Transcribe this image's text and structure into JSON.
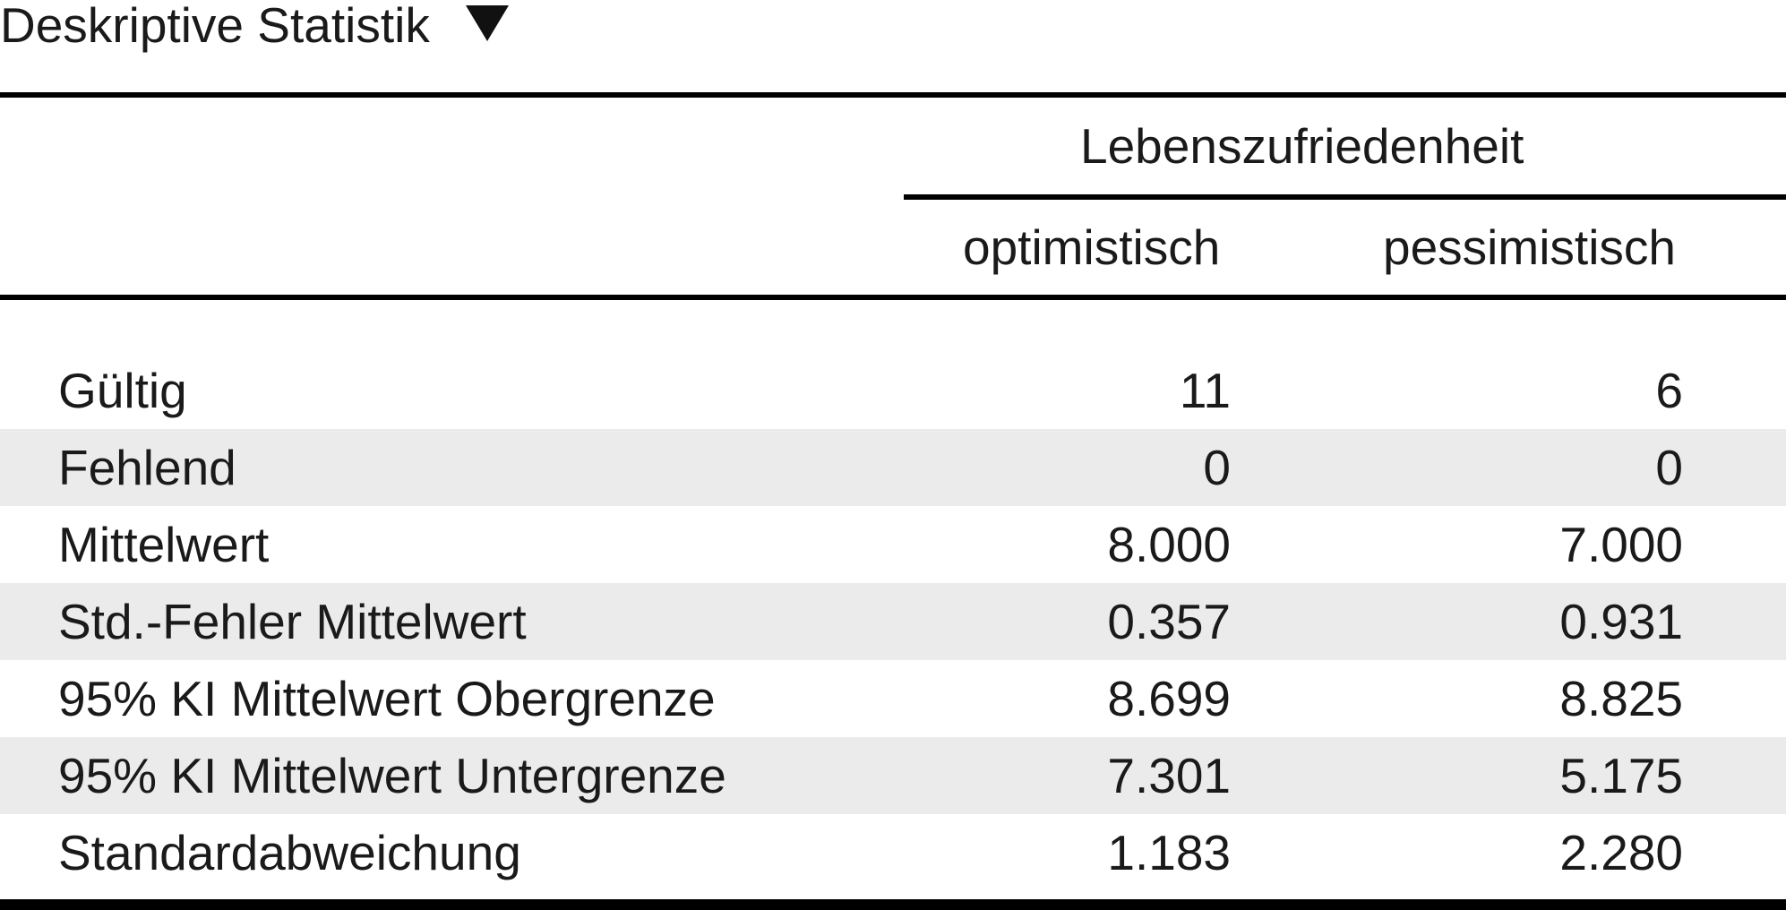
{
  "table": {
    "title": "Deskriptive Statistik",
    "group_header": "Lebenszufriedenheit",
    "columns": [
      "optimistisch",
      "pessimistisch"
    ],
    "rows": [
      {
        "label": "Gültig",
        "values": [
          "11",
          "6"
        ]
      },
      {
        "label": "Fehlend",
        "values": [
          "0",
          "0"
        ]
      },
      {
        "label": "Mittelwert",
        "values": [
          "8.000",
          "7.000"
        ]
      },
      {
        "label": "Std.-Fehler Mittelwert",
        "values": [
          "0.357",
          "0.931"
        ]
      },
      {
        "label": "95% KI Mittelwert Obergrenze",
        "values": [
          "8.699",
          "8.825"
        ]
      },
      {
        "label": "95% KI Mittelwert Untergrenze",
        "values": [
          "7.301",
          "5.175"
        ]
      },
      {
        "label": "Standardabweichung",
        "values": [
          "1.183",
          "2.280"
        ]
      }
    ]
  },
  "icons": {
    "collapse": "triangle-down-icon"
  },
  "colors": {
    "row_stripe": "#ebebeb",
    "rule": "#000000"
  }
}
